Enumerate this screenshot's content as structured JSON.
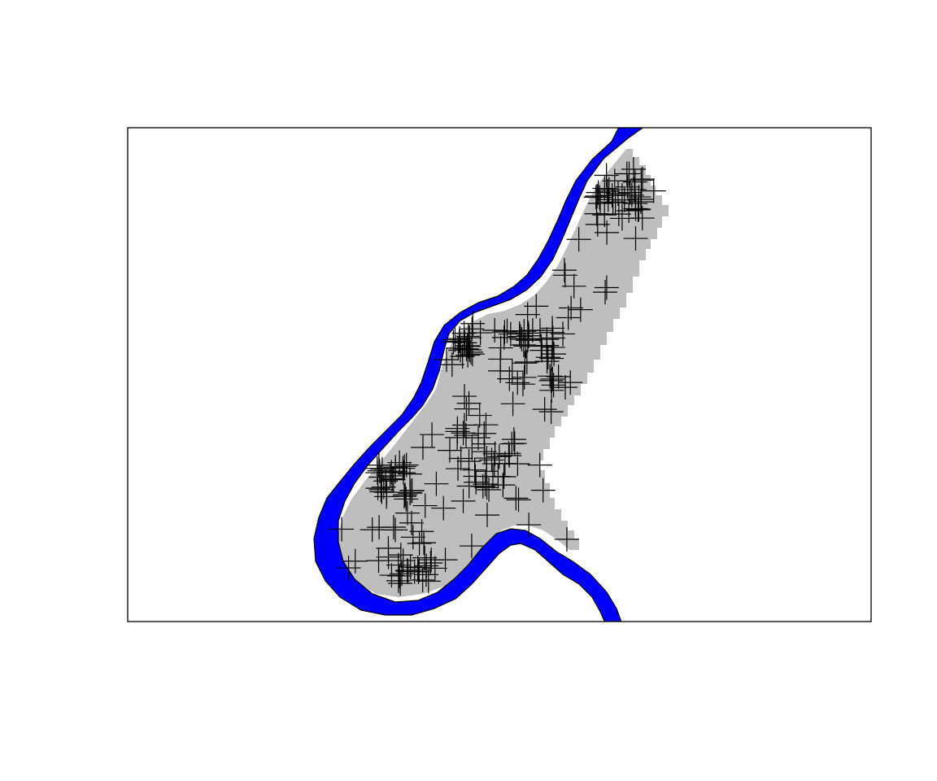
{
  "colors": {
    "background": "#ffffff",
    "frame": "#000000",
    "river_fill": "#0000ff",
    "river_outline": "#000000",
    "region_fill": "#bebebe",
    "point_marker": "#000000"
  },
  "map": {
    "frame_visible": true,
    "layers": [
      "river-polygon",
      "gray-raster-region",
      "point-markers"
    ],
    "point_marker_icon": "plus-marker-icon"
  }
}
